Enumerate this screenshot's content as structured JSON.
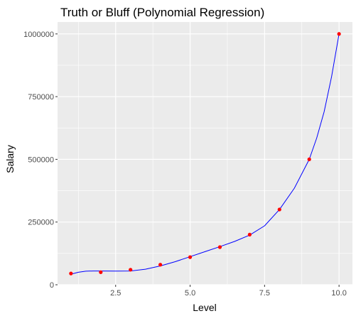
{
  "chart_data": {
    "type": "scatter",
    "title": "Truth or Bluff (Polynomial Regression)",
    "xlabel": "Level",
    "ylabel": "Salary",
    "xlim": [
      0.55,
      10.45
    ],
    "ylim": [
      0,
      1047500
    ],
    "x_ticks": [
      2.5,
      5.0,
      7.5,
      10.0
    ],
    "x_tick_labels": [
      "2.5",
      "5.0",
      "7.5",
      "10.0"
    ],
    "y_ticks": [
      0,
      250000,
      500000,
      750000,
      1000000
    ],
    "y_tick_labels": [
      "0",
      "250000",
      "500000",
      "750000",
      "1000000"
    ],
    "grid": true,
    "panel_background": "#ebebeb",
    "grid_color": "#ffffff",
    "series": [
      {
        "kind": "points",
        "color": "#ff0000",
        "x": [
          1,
          2,
          3,
          4,
          5,
          6,
          7,
          8,
          9,
          10
        ],
        "y": [
          45000,
          50000,
          60000,
          80000,
          110000,
          150000,
          200000,
          300000,
          500000,
          1000000
        ]
      },
      {
        "kind": "line",
        "color": "#0000ff",
        "x": [
          1.0,
          1.25,
          1.5,
          1.75,
          2.0,
          2.5,
          3.0,
          3.5,
          4.0,
          4.5,
          5.0,
          5.5,
          6.0,
          6.5,
          7.0,
          7.5,
          8.0,
          8.5,
          9.0,
          9.25,
          9.5,
          9.75,
          10.0
        ],
        "y": [
          42000,
          50000,
          54000,
          55000,
          55000,
          54500,
          55000,
          62000,
          75000,
          92000,
          112000,
          132000,
          152000,
          173000,
          198000,
          235000,
          300000,
          385000,
          500000,
          585000,
          690000,
          830000,
          1000000
        ]
      }
    ]
  }
}
